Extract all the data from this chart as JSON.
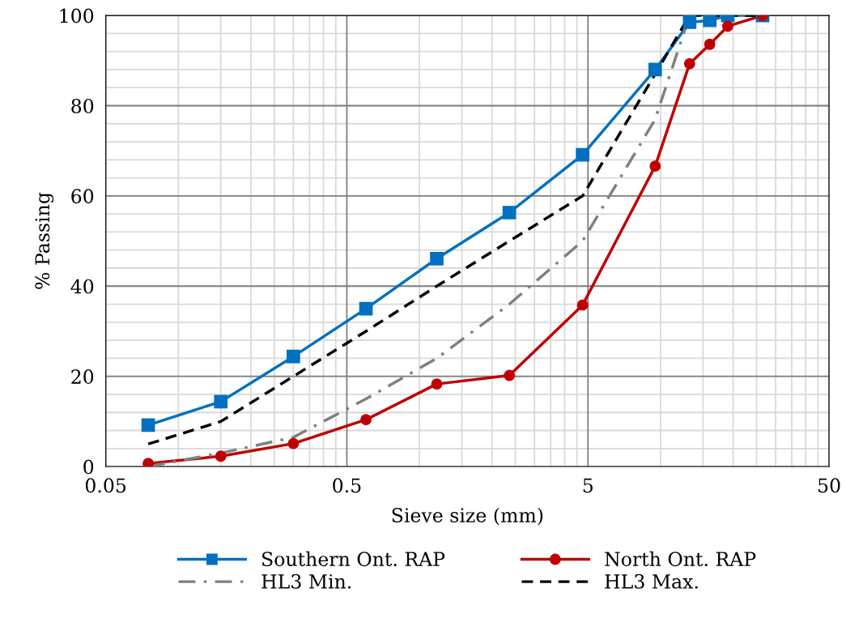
{
  "chart_data": {
    "type": "line",
    "xlabel": "Sieve size (mm)",
    "ylabel": "% Passing",
    "x": [
      0.075,
      0.15,
      0.3,
      0.6,
      1.18,
      2.36,
      4.75,
      9.5,
      13.2,
      16,
      19,
      26.5
    ],
    "series": [
      {
        "name": "Southern Ont. RAP",
        "color": "#0070c0",
        "marker": "square",
        "line_style": "solid",
        "values": [
          9.2,
          14.4,
          24.4,
          35,
          46.1,
          56.3,
          69.1,
          88,
          98.5,
          98.9,
          100,
          100
        ]
      },
      {
        "name": "North Ont. RAP",
        "color": "#c00000",
        "marker": "circle",
        "line_style": "solid",
        "values": [
          0.7,
          2.3,
          5.1,
          10.4,
          18.3,
          20.2,
          35.8,
          66.6,
          89.3,
          93.6,
          97.6,
          100
        ]
      },
      {
        "name": "HL3 Min.",
        "color": "#808080",
        "marker": "none",
        "line_style": "dashdot",
        "values": [
          0,
          3,
          6.5,
          15,
          24,
          36,
          50,
          77,
          100,
          100,
          100,
          100
        ]
      },
      {
        "name": "HL3 Max.",
        "color": "#000000",
        "marker": "none",
        "line_style": "dashed",
        "values": [
          5,
          10,
          20,
          30,
          40,
          50,
          60,
          87,
          100,
          100,
          100,
          100
        ]
      }
    ],
    "log": "x",
    "xlim": [
      0.05,
      50
    ],
    "xticks": [
      0.05,
      0.5,
      5,
      50
    ],
    "ylim": [
      0,
      100
    ],
    "yticks": [
      0,
      20,
      40,
      60,
      80,
      100
    ],
    "grid": true,
    "legend": "bottom"
  }
}
